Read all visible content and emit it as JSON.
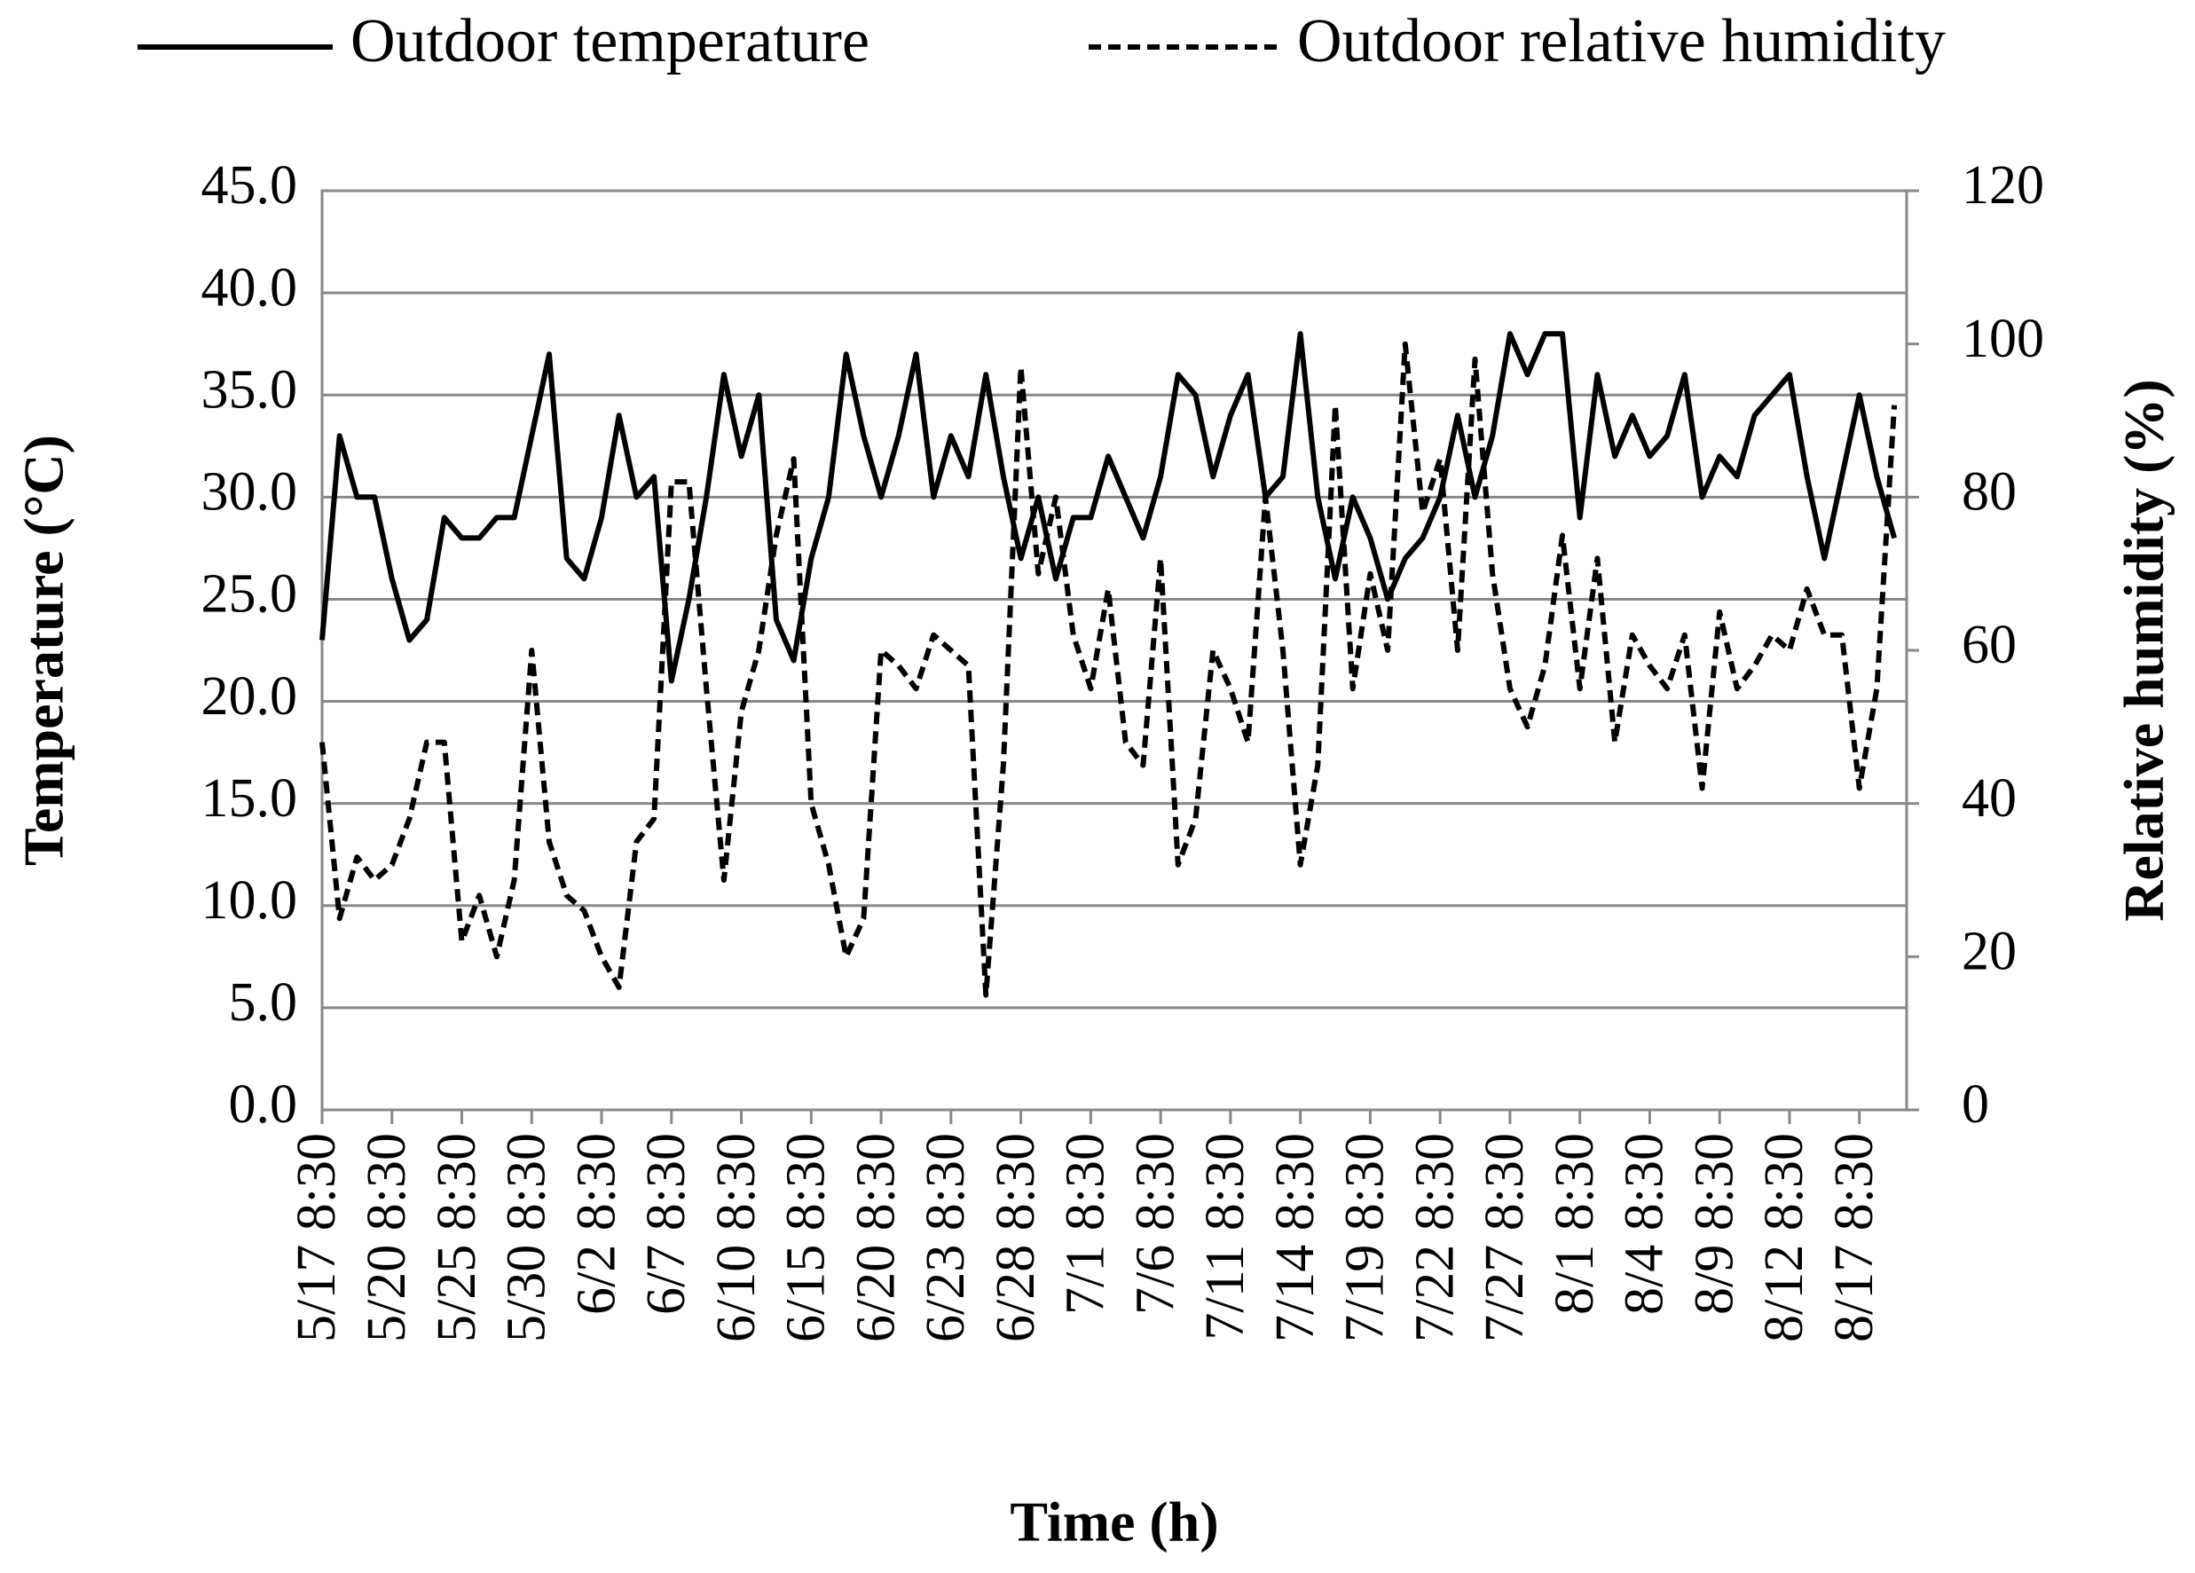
{
  "chart_data": {
    "type": "line",
    "x_label": "Time (h)",
    "y_label": "Temperature (°C)",
    "y2_label": "Relative humidity (%)",
    "categories": [
      "5/17 8:30",
      null,
      null,
      null,
      "5/20 8:30",
      null,
      null,
      null,
      "5/25 8:30",
      null,
      null,
      null,
      "5/30 8:30",
      null,
      null,
      null,
      "6/2 8:30",
      null,
      null,
      null,
      "6/7 8:30",
      null,
      null,
      null,
      "6/10 8:30",
      null,
      null,
      null,
      "6/15 8:30",
      null,
      null,
      null,
      "6/20 8:30",
      null,
      null,
      null,
      "6/23 8:30",
      null,
      null,
      null,
      "6/28 8:30",
      null,
      null,
      null,
      "7/1 8:30",
      null,
      null,
      null,
      "7/6 8:30",
      null,
      null,
      null,
      "7/11 8:30",
      null,
      null,
      null,
      "7/14 8:30",
      null,
      null,
      null,
      "7/19 8:30",
      null,
      null,
      null,
      "7/22 8:30",
      null,
      null,
      null,
      "7/27 8:30",
      null,
      null,
      null,
      "8/1 8:30",
      null,
      null,
      null,
      "8/4 8:30",
      null,
      null,
      null,
      "8/9 8:30",
      null,
      null,
      null,
      "8/12 8:30",
      null,
      null,
      null,
      "8/17 8:30",
      null,
      null
    ],
    "series": [
      {
        "name": "Outdoor temperature",
        "color": "#000000",
        "dash": "solid",
        "values": [
          23,
          33,
          30,
          30,
          26,
          23,
          24,
          29,
          28,
          28,
          29,
          29,
          33,
          37,
          27,
          26,
          29,
          34,
          30,
          31,
          21,
          25,
          30,
          36,
          32,
          35,
          24,
          22,
          27,
          30,
          37,
          33,
          30,
          33,
          37,
          30,
          33,
          31,
          36,
          31,
          27,
          30,
          26,
          29,
          29,
          32,
          30,
          28,
          31,
          36,
          35,
          31,
          34,
          36,
          30,
          31,
          38,
          30,
          26,
          30,
          28,
          25,
          27,
          28,
          30,
          34,
          30,
          33,
          38,
          36,
          38,
          38,
          29,
          36,
          32,
          34,
          32,
          33,
          36,
          30,
          32,
          31,
          34,
          35,
          36,
          31,
          27,
          31,
          35,
          31,
          28
        ]
      },
      {
        "name": "Outdoor relative humidity",
        "color": "#000000",
        "dash": "dashed",
        "axis": "y2",
        "values": [
          48,
          25,
          33,
          30,
          32,
          38,
          48,
          48,
          22,
          28,
          20,
          30,
          60,
          35,
          28,
          26,
          20,
          16,
          35,
          38,
          82,
          82,
          55,
          30,
          52,
          60,
          75,
          85,
          40,
          32,
          20,
          25,
          60,
          58,
          55,
          62,
          60,
          58,
          15,
          45,
          97,
          70,
          80,
          62,
          55,
          68,
          48,
          45,
          72,
          32,
          38,
          60,
          55,
          48,
          80,
          60,
          32,
          45,
          92,
          55,
          70,
          60,
          100,
          78,
          85,
          60,
          98,
          70,
          55,
          50,
          58,
          75,
          55,
          72,
          48,
          62,
          58,
          55,
          62,
          42,
          65,
          55,
          58,
          62,
          60,
          68,
          62,
          62,
          42,
          55,
          92
        ]
      }
    ],
    "ylim": [
      0,
      45
    ],
    "yticks": [
      {
        "value": 0,
        "label": "0.0"
      },
      {
        "value": 5,
        "label": "5.0"
      },
      {
        "value": 10,
        "label": "10.0"
      },
      {
        "value": 15,
        "label": "15.0"
      },
      {
        "value": 20,
        "label": "20.0"
      },
      {
        "value": 25,
        "label": "25.0"
      },
      {
        "value": 30,
        "label": "30.0"
      },
      {
        "value": 35,
        "label": "35.0"
      },
      {
        "value": 40,
        "label": "40.0"
      },
      {
        "value": 45,
        "label": "45.0"
      }
    ],
    "y2lim": [
      0,
      120
    ],
    "y2ticks": [
      0,
      20,
      40,
      60,
      80,
      100,
      120
    ],
    "grid": true,
    "legend": "top"
  }
}
